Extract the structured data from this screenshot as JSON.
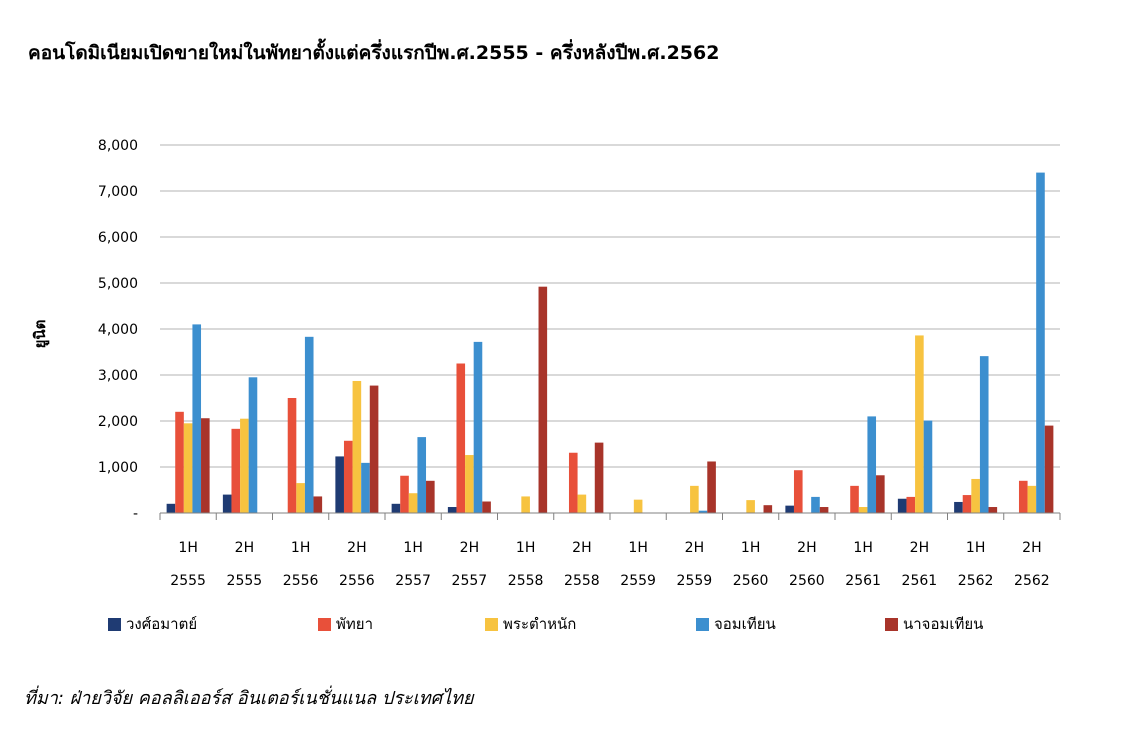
{
  "chart_data": {
    "type": "bar",
    "title": "คอนโดมิเนียมเปิดขายใหม่ในพัทยาตั้งแต่ครึ่งแรกปีพ.ศ.2555  - ครึ่งหลังปีพ.ศ.2562",
    "ylabel": "ยูนิต",
    "xlabel": "",
    "ylim": [
      0,
      8000
    ],
    "yticks": [
      0,
      1000,
      2000,
      3000,
      4000,
      5000,
      6000,
      7000,
      8000
    ],
    "ytick_labels": [
      "-",
      "1,000",
      "2,000",
      "3,000",
      "4,000",
      "5,000",
      "6,000",
      "7,000",
      "8,000"
    ],
    "grid": true,
    "legend_position": "bottom",
    "categories": [
      {
        "half": "1H",
        "year": "2555"
      },
      {
        "half": "2H",
        "year": "2555"
      },
      {
        "half": "1H",
        "year": "2556"
      },
      {
        "half": "2H",
        "year": "2556"
      },
      {
        "half": "1H",
        "year": "2557"
      },
      {
        "half": "2H",
        "year": "2557"
      },
      {
        "half": "1H",
        "year": "2558"
      },
      {
        "half": "2H",
        "year": "2558"
      },
      {
        "half": "1H",
        "year": "2559"
      },
      {
        "half": "2H",
        "year": "2559"
      },
      {
        "half": "1H",
        "year": "2560"
      },
      {
        "half": "2H",
        "year": "2560"
      },
      {
        "half": "1H",
        "year": "2561"
      },
      {
        "half": "2H",
        "year": "2561"
      },
      {
        "half": "1H",
        "year": "2562"
      },
      {
        "half": "2H",
        "year": "2562"
      }
    ],
    "series": [
      {
        "name": "วงศ์อมาตย์",
        "color": "#1F3B73",
        "values": [
          200,
          400,
          0,
          1230,
          200,
          130,
          0,
          0,
          0,
          0,
          0,
          160,
          0,
          310,
          240,
          0
        ]
      },
      {
        "name": "พัทยา",
        "color": "#E8503A",
        "values": [
          2200,
          1830,
          2500,
          1570,
          810,
          3250,
          0,
          1310,
          0,
          0,
          0,
          930,
          590,
          350,
          390,
          700
        ]
      },
      {
        "name": "พระตำหนัก",
        "color": "#F7C340",
        "values": [
          1950,
          2050,
          650,
          2870,
          430,
          1260,
          360,
          400,
          290,
          590,
          280,
          0,
          130,
          3860,
          740,
          590
        ]
      },
      {
        "name": "จอมเทียน",
        "color": "#3C8FCF",
        "values": [
          4100,
          2950,
          3830,
          1090,
          1650,
          3720,
          0,
          0,
          0,
          50,
          0,
          350,
          2100,
          2010,
          3410,
          7400
        ]
      },
      {
        "name": "นาจอมเทียน",
        "color": "#A8342A",
        "values": [
          2060,
          0,
          360,
          2770,
          700,
          250,
          4920,
          1530,
          0,
          1120,
          170,
          130,
          820,
          0,
          130,
          1900
        ]
      }
    ]
  },
  "source": "ที่มา: ฝ่ายวิจัย  คอลลิเออร์ส  อินเตอร์เนชั่นแนล  ประเทศไทย"
}
